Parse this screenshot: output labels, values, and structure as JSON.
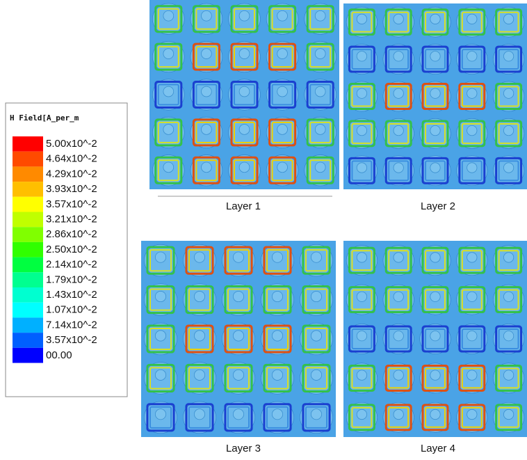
{
  "legend": {
    "title": "H Field[A_per_m",
    "entries": [
      {
        "label": "5.00x10^-2",
        "color": "#ff0000"
      },
      {
        "label": "4.64x10^-2",
        "color": "#ff4a00"
      },
      {
        "label": "4.29x10^-2",
        "color": "#ff8a00"
      },
      {
        "label": "3.93x10^-2",
        "color": "#ffbf00"
      },
      {
        "label": "3.57x10^-2",
        "color": "#ffff00"
      },
      {
        "label": "3.21x10^-2",
        "color": "#c0ff00"
      },
      {
        "label": "2.86x10^-2",
        "color": "#80ff00"
      },
      {
        "label": "2.50x10^-2",
        "color": "#30ff00"
      },
      {
        "label": "2.14x10^-2",
        "color": "#00ff40"
      },
      {
        "label": "1.79x10^-2",
        "color": "#00ff90"
      },
      {
        "label": "1.43x10^-2",
        "color": "#00ffd0"
      },
      {
        "label": "1.07x10^-2",
        "color": "#00ffff"
      },
      {
        "label": "7.14x10^-2",
        "color": "#00b0ff"
      },
      {
        "label": "3.57x10^-2",
        "color": "#0060ff"
      },
      {
        "label": "00.00",
        "color": "#0000ff"
      }
    ]
  },
  "panels": [
    {
      "label": "Layer 1"
    },
    {
      "label": "Layer 2"
    },
    {
      "label": "Layer 3"
    },
    {
      "label": "Layer 4"
    }
  ]
}
